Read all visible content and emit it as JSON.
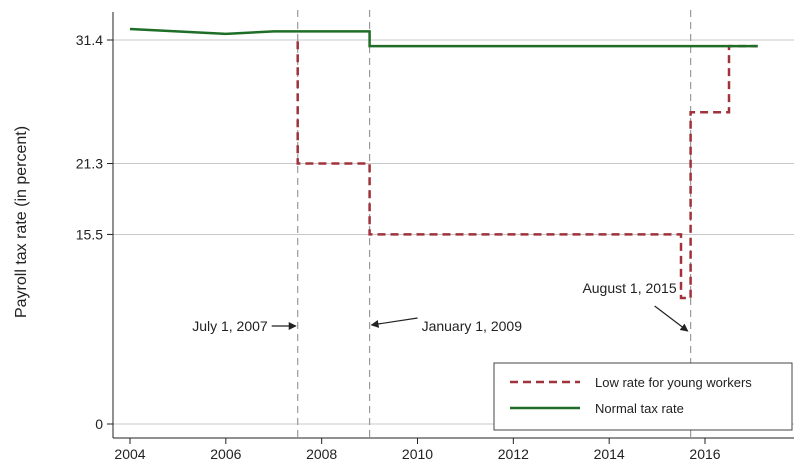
{
  "chart_data": {
    "type": "line",
    "ylabel": "Payroll tax rate (in percent)",
    "xlabel": "",
    "xlim": [
      2004,
      2017.1
    ],
    "ylim": [
      0,
      31.4
    ],
    "x_ticks": [
      2004,
      2006,
      2008,
      2010,
      2012,
      2014,
      2016
    ],
    "x_tick_labels": [
      "2004",
      "2006",
      "2008",
      "2010",
      "2012",
      "2014",
      "2016"
    ],
    "y_ticks": [
      0,
      15.5,
      21.3,
      31.4
    ],
    "y_tick_labels": [
      "0",
      "15.5",
      "21.3",
      "31.4"
    ],
    "grid": "horizontal",
    "legend_position": "bottom-right",
    "series": [
      {
        "name": "Low rate for young workers",
        "style": "dashed",
        "color": "#a0323c",
        "points": [
          [
            2007.5,
            31.3
          ],
          [
            2007.5,
            21.3
          ],
          [
            2009.0,
            21.3
          ],
          [
            2009.0,
            15.5
          ],
          [
            2015.5,
            15.5
          ],
          [
            2015.5,
            10.3
          ],
          [
            2015.7,
            10.3
          ],
          [
            2015.7,
            25.5
          ],
          [
            2016.5,
            25.5
          ],
          [
            2016.5,
            30.9
          ],
          [
            2017.1,
            30.9
          ]
        ]
      },
      {
        "name": "Normal tax rate",
        "style": "solid",
        "color": "#1e6e28",
        "points": [
          [
            2004.0,
            32.3
          ],
          [
            2006.0,
            31.9
          ],
          [
            2007.0,
            32.1
          ],
          [
            2009.0,
            32.1
          ],
          [
            2009.0,
            30.9
          ],
          [
            2017.1,
            30.9
          ]
        ]
      }
    ],
    "vlines": [
      2007.5,
      2009.0,
      2015.7
    ],
    "annotations": [
      {
        "text": "July 1, 2007",
        "x": 2007.5
      },
      {
        "text": "January 1, 2009",
        "x": 2009.0
      },
      {
        "text": "August 1, 2015",
        "x": 2015.7
      }
    ]
  }
}
